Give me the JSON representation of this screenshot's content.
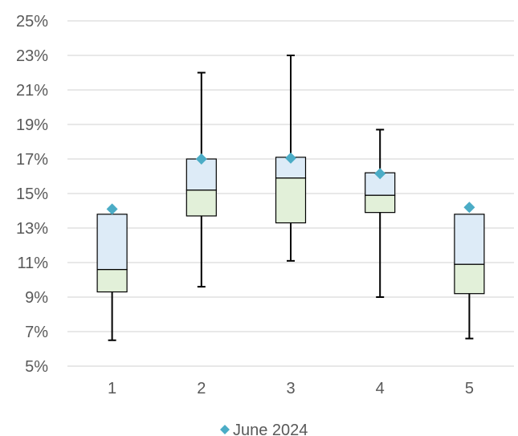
{
  "chart_data": {
    "type": "box",
    "categories": [
      "1",
      "2",
      "3",
      "4",
      "5"
    ],
    "y_ticks": [
      "5%",
      "7%",
      "9%",
      "11%",
      "13%",
      "15%",
      "17%",
      "19%",
      "21%",
      "23%",
      "25%"
    ],
    "ylim": [
      5,
      25
    ],
    "y_unit": "%",
    "grid": true,
    "legend_position": "bottom",
    "boxes": [
      {
        "min": 6.5,
        "q1": 9.3,
        "median": 10.6,
        "q3": 13.8,
        "max": 13.8
      },
      {
        "min": 9.6,
        "q1": 13.7,
        "median": 15.2,
        "q3": 17.0,
        "max": 22.0
      },
      {
        "min": 11.1,
        "q1": 13.3,
        "median": 15.9,
        "q3": 17.1,
        "max": 23.0
      },
      {
        "min": 9.0,
        "q1": 13.9,
        "median": 14.9,
        "q3": 16.2,
        "max": 18.7
      },
      {
        "min": 6.6,
        "q1": 9.2,
        "median": 10.9,
        "q3": 13.8,
        "max": 13.8
      }
    ],
    "series": [
      {
        "name": "June 2024",
        "values": [
          14.1,
          17.0,
          17.05,
          16.15,
          14.2
        ]
      }
    ],
    "colors": {
      "lower_box": "#e2f0d9",
      "upper_box": "#ddebf7",
      "marker": "#4bacc6",
      "grid": "#d9d9d9",
      "stroke": "#000000"
    }
  }
}
